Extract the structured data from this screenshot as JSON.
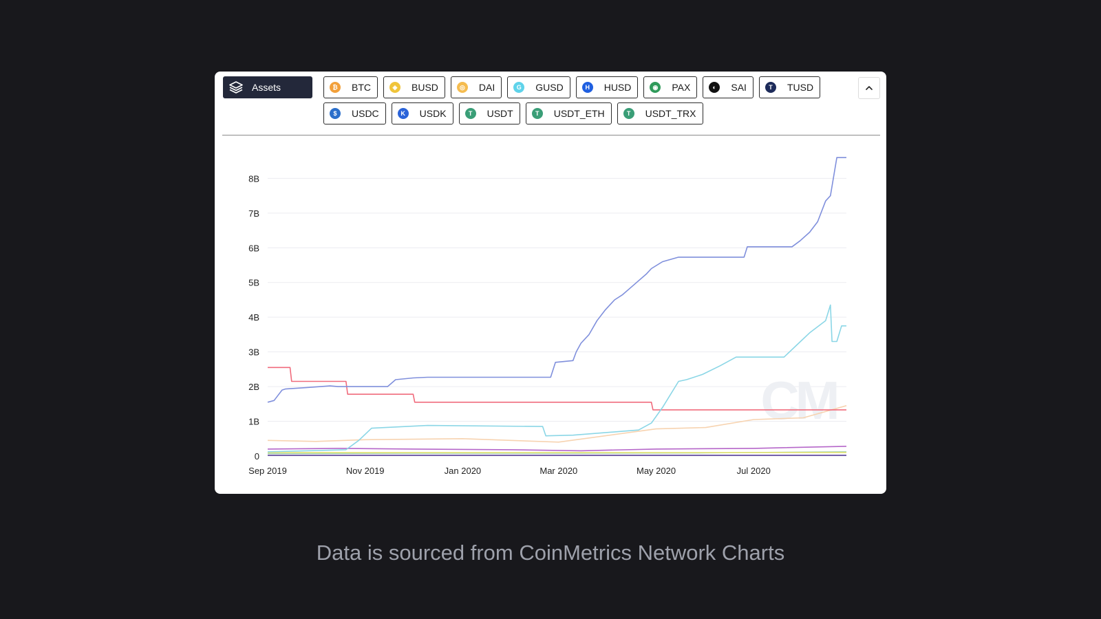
{
  "assets_button": {
    "label": "Assets",
    "icon": "layers-icon"
  },
  "assets": {
    "row1": [
      {
        "label": "BTC",
        "color": "#f2a03a",
        "icon": "btc-coin-icon",
        "glyph": "₿"
      },
      {
        "label": "BUSD",
        "color": "#f0c43a",
        "icon": "busd-coin-icon",
        "glyph": "◈"
      },
      {
        "label": "DAI",
        "color": "#f5bc4f",
        "icon": "dai-coin-icon",
        "glyph": "◎"
      },
      {
        "label": "GUSD",
        "color": "#5fd3ea",
        "icon": "gusd-coin-icon",
        "glyph": "G"
      },
      {
        "label": "HUSD",
        "color": "#1f5fe0",
        "icon": "husd-coin-icon",
        "glyph": "H"
      },
      {
        "label": "PAX",
        "color": "#2f9a5a",
        "icon": "pax-coin-icon",
        "glyph": "◉"
      },
      {
        "label": "SAI",
        "color": "#111111",
        "icon": "sai-coin-icon",
        "glyph": "◐"
      },
      {
        "label": "TUSD",
        "color": "#1d2b5a",
        "icon": "tusd-coin-icon",
        "glyph": "T"
      }
    ],
    "row2": [
      {
        "label": "USDC",
        "color": "#2b6fcb",
        "icon": "usdc-coin-icon",
        "glyph": "$"
      },
      {
        "label": "USDK",
        "color": "#2a63d9",
        "icon": "usdk-coin-icon",
        "glyph": "K"
      },
      {
        "label": "USDT",
        "color": "#3a9e77",
        "icon": "usdt-coin-icon",
        "glyph": "T"
      },
      {
        "label": "USDT_ETH",
        "color": "#3a9e77",
        "icon": "usdt-eth-coin-icon",
        "glyph": "T"
      },
      {
        "label": "USDT_TRX",
        "color": "#3a9e77",
        "icon": "usdt-trx-coin-icon",
        "glyph": "T"
      }
    ]
  },
  "collapse_button": {
    "icon": "chevron-up-icon"
  },
  "watermark": "CM",
  "caption": "Data is sourced from CoinMetrics Network Charts",
  "chart_data": {
    "type": "line",
    "title": "",
    "xlabel": "",
    "ylabel": "",
    "x_range": [
      "2019-09-01",
      "2020-08-28"
    ],
    "ylim": [
      0,
      8.8
    ],
    "y_unit": "billions",
    "y_ticks": [
      0,
      1,
      2,
      3,
      4,
      5,
      6,
      7,
      8
    ],
    "y_tick_labels": [
      "0",
      "1B",
      "2B",
      "3B",
      "4B",
      "5B",
      "6B",
      "7B",
      "8B"
    ],
    "x_ticks": [
      "2019-09-01",
      "2019-11-01",
      "2020-01-01",
      "2020-03-01",
      "2020-05-01",
      "2020-07-01"
    ],
    "x_tick_labels": [
      "Sep 2019",
      "Nov 2019",
      "Jan 2020",
      "Mar 2020",
      "May 2020",
      "Jul 2020"
    ],
    "grid": true,
    "legend": "none",
    "series": [
      {
        "color": "#7f8fdc",
        "x": [
          "2019-09-01",
          "2019-09-05",
          "2019-09-10",
          "2019-09-12",
          "2019-09-25",
          "2019-10-10",
          "2019-10-15",
          "2019-11-15",
          "2019-11-20",
          "2019-12-01",
          "2019-12-10",
          "2020-02-25",
          "2020-02-28",
          "2020-03-10",
          "2020-03-12",
          "2020-03-15",
          "2020-03-20",
          "2020-03-25",
          "2020-03-30",
          "2020-04-05",
          "2020-04-10",
          "2020-04-15",
          "2020-04-20",
          "2020-04-25",
          "2020-04-28",
          "2020-05-05",
          "2020-05-15",
          "2020-06-25",
          "2020-06-27",
          "2020-07-25",
          "2020-07-30",
          "2020-08-05",
          "2020-08-10",
          "2020-08-15",
          "2020-08-18",
          "2020-08-22",
          "2020-08-28"
        ],
        "y": [
          1.55,
          1.6,
          1.9,
          1.93,
          1.97,
          2.02,
          2.0,
          2.0,
          2.2,
          2.25,
          2.27,
          2.27,
          2.7,
          2.75,
          3.0,
          3.25,
          3.5,
          3.9,
          4.2,
          4.5,
          4.65,
          4.85,
          5.05,
          5.25,
          5.4,
          5.6,
          5.73,
          5.73,
          6.03,
          6.03,
          6.2,
          6.45,
          6.75,
          7.35,
          7.5,
          8.6,
          8.6
        ]
      },
      {
        "color": "#8ad6e6",
        "x": [
          "2019-09-01",
          "2019-10-20",
          "2019-10-28",
          "2019-11-05",
          "2019-12-10",
          "2020-02-20",
          "2020-02-22",
          "2020-03-10",
          "2020-04-20",
          "2020-04-28",
          "2020-05-05",
          "2020-05-15",
          "2020-05-20",
          "2020-05-30",
          "2020-06-10",
          "2020-06-20",
          "2020-07-20",
          "2020-07-28",
          "2020-08-05",
          "2020-08-15",
          "2020-08-18",
          "2020-08-19",
          "2020-08-22",
          "2020-08-25",
          "2020-08-28"
        ],
        "y": [
          0.12,
          0.18,
          0.45,
          0.8,
          0.88,
          0.85,
          0.58,
          0.6,
          0.75,
          0.95,
          1.4,
          2.15,
          2.2,
          2.35,
          2.6,
          2.85,
          2.85,
          3.2,
          3.55,
          3.9,
          4.35,
          3.3,
          3.3,
          3.75,
          3.75
        ]
      },
      {
        "color": "#f06b7c",
        "x": [
          "2019-09-01",
          "2019-09-15",
          "2019-09-16",
          "2019-10-20",
          "2019-10-21",
          "2019-12-01",
          "2019-12-02",
          "2020-04-28",
          "2020-04-29",
          "2020-08-28"
        ],
        "y": [
          2.55,
          2.55,
          2.15,
          2.15,
          1.78,
          1.78,
          1.55,
          1.55,
          1.33,
          1.33
        ]
      },
      {
        "color": "#f7d3b0",
        "x": [
          "2019-09-01",
          "2019-10-01",
          "2019-11-01",
          "2020-01-01",
          "2020-03-01",
          "2020-05-01",
          "2020-06-01",
          "2020-07-01",
          "2020-08-01",
          "2020-08-28"
        ],
        "y": [
          0.45,
          0.42,
          0.47,
          0.5,
          0.4,
          0.78,
          0.82,
          1.05,
          1.1,
          1.45
        ]
      },
      {
        "color": "#b566c9",
        "x": [
          "2019-09-01",
          "2019-10-15",
          "2019-12-01",
          "2020-02-01",
          "2020-03-15",
          "2020-05-01",
          "2020-07-01",
          "2020-08-28"
        ],
        "y": [
          0.2,
          0.22,
          0.2,
          0.18,
          0.15,
          0.2,
          0.22,
          0.28
        ]
      },
      {
        "color": "#e9e36a",
        "x": [
          "2019-09-01",
          "2019-12-01",
          "2020-03-01",
          "2020-06-01",
          "2020-08-28"
        ],
        "y": [
          0.1,
          0.1,
          0.1,
          0.1,
          0.1
        ]
      },
      {
        "color": "#9ed0b0",
        "x": [
          "2019-09-01",
          "2019-12-01",
          "2020-03-01",
          "2020-06-01",
          "2020-08-28"
        ],
        "y": [
          0.07,
          0.08,
          0.08,
          0.09,
          0.12
        ]
      },
      {
        "color": "#4a2f8f",
        "x": [
          "2019-09-01",
          "2020-01-01",
          "2020-05-01",
          "2020-08-28"
        ],
        "y": [
          0.02,
          0.02,
          0.02,
          0.02
        ]
      }
    ]
  }
}
